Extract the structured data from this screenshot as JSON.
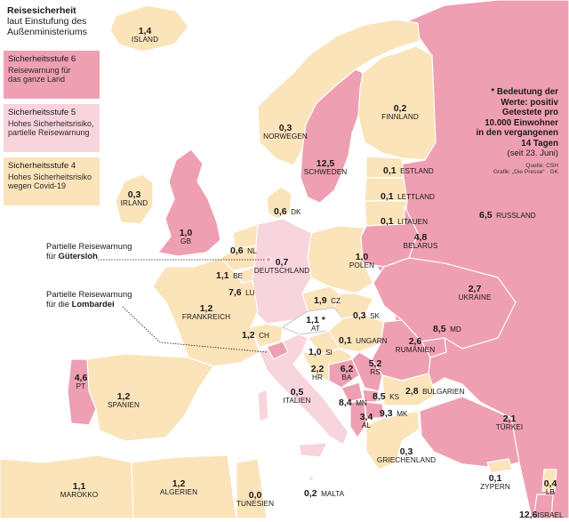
{
  "colors": {
    "level6": "#ef9fb2",
    "level5": "#f8d4dd",
    "level4": "#fbe3ba",
    "sea": "#ffffff",
    "border": "#ffffff"
  },
  "legend": {
    "title": "Reisesicherheit",
    "subtitle_line1": "laut Einstufung des",
    "subtitle_line2": "Außenministeriums",
    "items": [
      {
        "heading": "Sicherheitsstufe 6",
        "line1": "Reisewarnung für",
        "line2": "das ganze Land"
      },
      {
        "heading": "Sicherheitsstufe 5",
        "line1": "Hohes Sicherheitsrisiko,",
        "line2": "partielle Reisewarnung"
      },
      {
        "heading": "Sicherheitsstufe 4",
        "line1": "Hohes Sicherheitsrisiko",
        "line2": "wegen Covid-19"
      }
    ]
  },
  "annotations": {
    "guetersloh_line1": "Partielle Reisewarnung",
    "guetersloh_prefix": "für ",
    "guetersloh_place": "Gütersloh",
    "lombardei_line1": "Partielle Reisewarnung",
    "lombardei_prefix": "für die ",
    "lombardei_place": "Lombardei"
  },
  "note": {
    "line1": "* Bedeutung der",
    "line2": "Werte: positiv",
    "line3": "Getestete pro",
    "line4": "10.000 Einwohner",
    "line5": "in den vergangenen",
    "line6": "14 Tagen",
    "line7": "(seit 23. Juni)",
    "source1": "Quelle: CSH",
    "source2": "Grafik: „Die Presse“ · GK"
  },
  "countries": {
    "island": {
      "value": "1,4",
      "name": "ISLAND"
    },
    "norwegen": {
      "value": "0,3",
      "name": "NORWEGEN"
    },
    "schweden": {
      "value": "12,5",
      "name": "SCHWEDEN"
    },
    "finnland": {
      "value": "0,2",
      "name": "FINNLAND"
    },
    "estland": {
      "value": "0,1",
      "name": "ESTLAND"
    },
    "lettland": {
      "value": "0,1",
      "name": "LETTLAND"
    },
    "litauen": {
      "value": "0,1",
      "name": "LITAUEN"
    },
    "russland": {
      "value": "6,5",
      "name": "RUSSLAND"
    },
    "irland": {
      "value": "0,3",
      "name": "IRLAND"
    },
    "gb": {
      "value": "1,0",
      "name": "GB"
    },
    "dk": {
      "value": "0,6",
      "name": "DK"
    },
    "nl": {
      "value": "0,6",
      "name": "NL"
    },
    "be": {
      "value": "1,1",
      "name": "BE"
    },
    "lu": {
      "value": "7,6",
      "name": "LU"
    },
    "deutschland": {
      "value": "0,7",
      "name": "DEUTSCHLAND"
    },
    "polen": {
      "value": "1,0",
      "name": "POLEN"
    },
    "belarus": {
      "value": "4,8",
      "name": "BELARUS"
    },
    "ukraine": {
      "value": "2,7",
      "name": "UKRAINE"
    },
    "frankreich": {
      "value": "1,2",
      "name": "FRANKREICH"
    },
    "ch": {
      "value": "1,2",
      "name": "CH"
    },
    "cz": {
      "value": "1,9",
      "name": "CZ"
    },
    "at": {
      "value": "1,1 *",
      "name": "AT"
    },
    "sk": {
      "value": "0,3",
      "name": "SK"
    },
    "si": {
      "value": "1,0",
      "name": "SI"
    },
    "ungarn": {
      "value": "0,1",
      "name": "UNGARN"
    },
    "md": {
      "value": "8,5",
      "name": "MD"
    },
    "rumaenien": {
      "value": "2,6",
      "name": "RUMÄNIEN"
    },
    "hr": {
      "value": "2,2",
      "name": "HR"
    },
    "ba": {
      "value": "6,2",
      "name": "BA"
    },
    "rs": {
      "value": "5,2",
      "name": "RS"
    },
    "ks": {
      "value": "8,5",
      "name": "KS"
    },
    "mn": {
      "value": "8,4",
      "name": "MN"
    },
    "mk": {
      "value": "9,3",
      "name": "MK"
    },
    "al": {
      "value": "3,4",
      "name": "AL"
    },
    "bulgarien": {
      "value": "2,8",
      "name": "BULGARIEN"
    },
    "pt": {
      "value": "4,6",
      "name": "PT"
    },
    "spanien": {
      "value": "1,2",
      "name": "SPANIEN"
    },
    "italien": {
      "value": "0,5",
      "name": "ITALIEN"
    },
    "griechenland": {
      "value": "0,3",
      "name": "GRIECHENLAND"
    },
    "tuerkei": {
      "value": "2,1",
      "name": "TÜRKEI"
    },
    "zypern": {
      "value": "0,1",
      "name": "ZYPERN"
    },
    "lb": {
      "value": "0,4",
      "name": "LB"
    },
    "israel": {
      "value": "12,6",
      "name": "ISRAEL"
    },
    "marokko": {
      "value": "1,1",
      "name": "MAROKKO"
    },
    "algerien": {
      "value": "1,2",
      "name": "ALGERIEN"
    },
    "tunesien": {
      "value": "0,0",
      "name": "TUNESIEN"
    },
    "malta": {
      "value": "0,2",
      "name": "MALTA"
    }
  }
}
